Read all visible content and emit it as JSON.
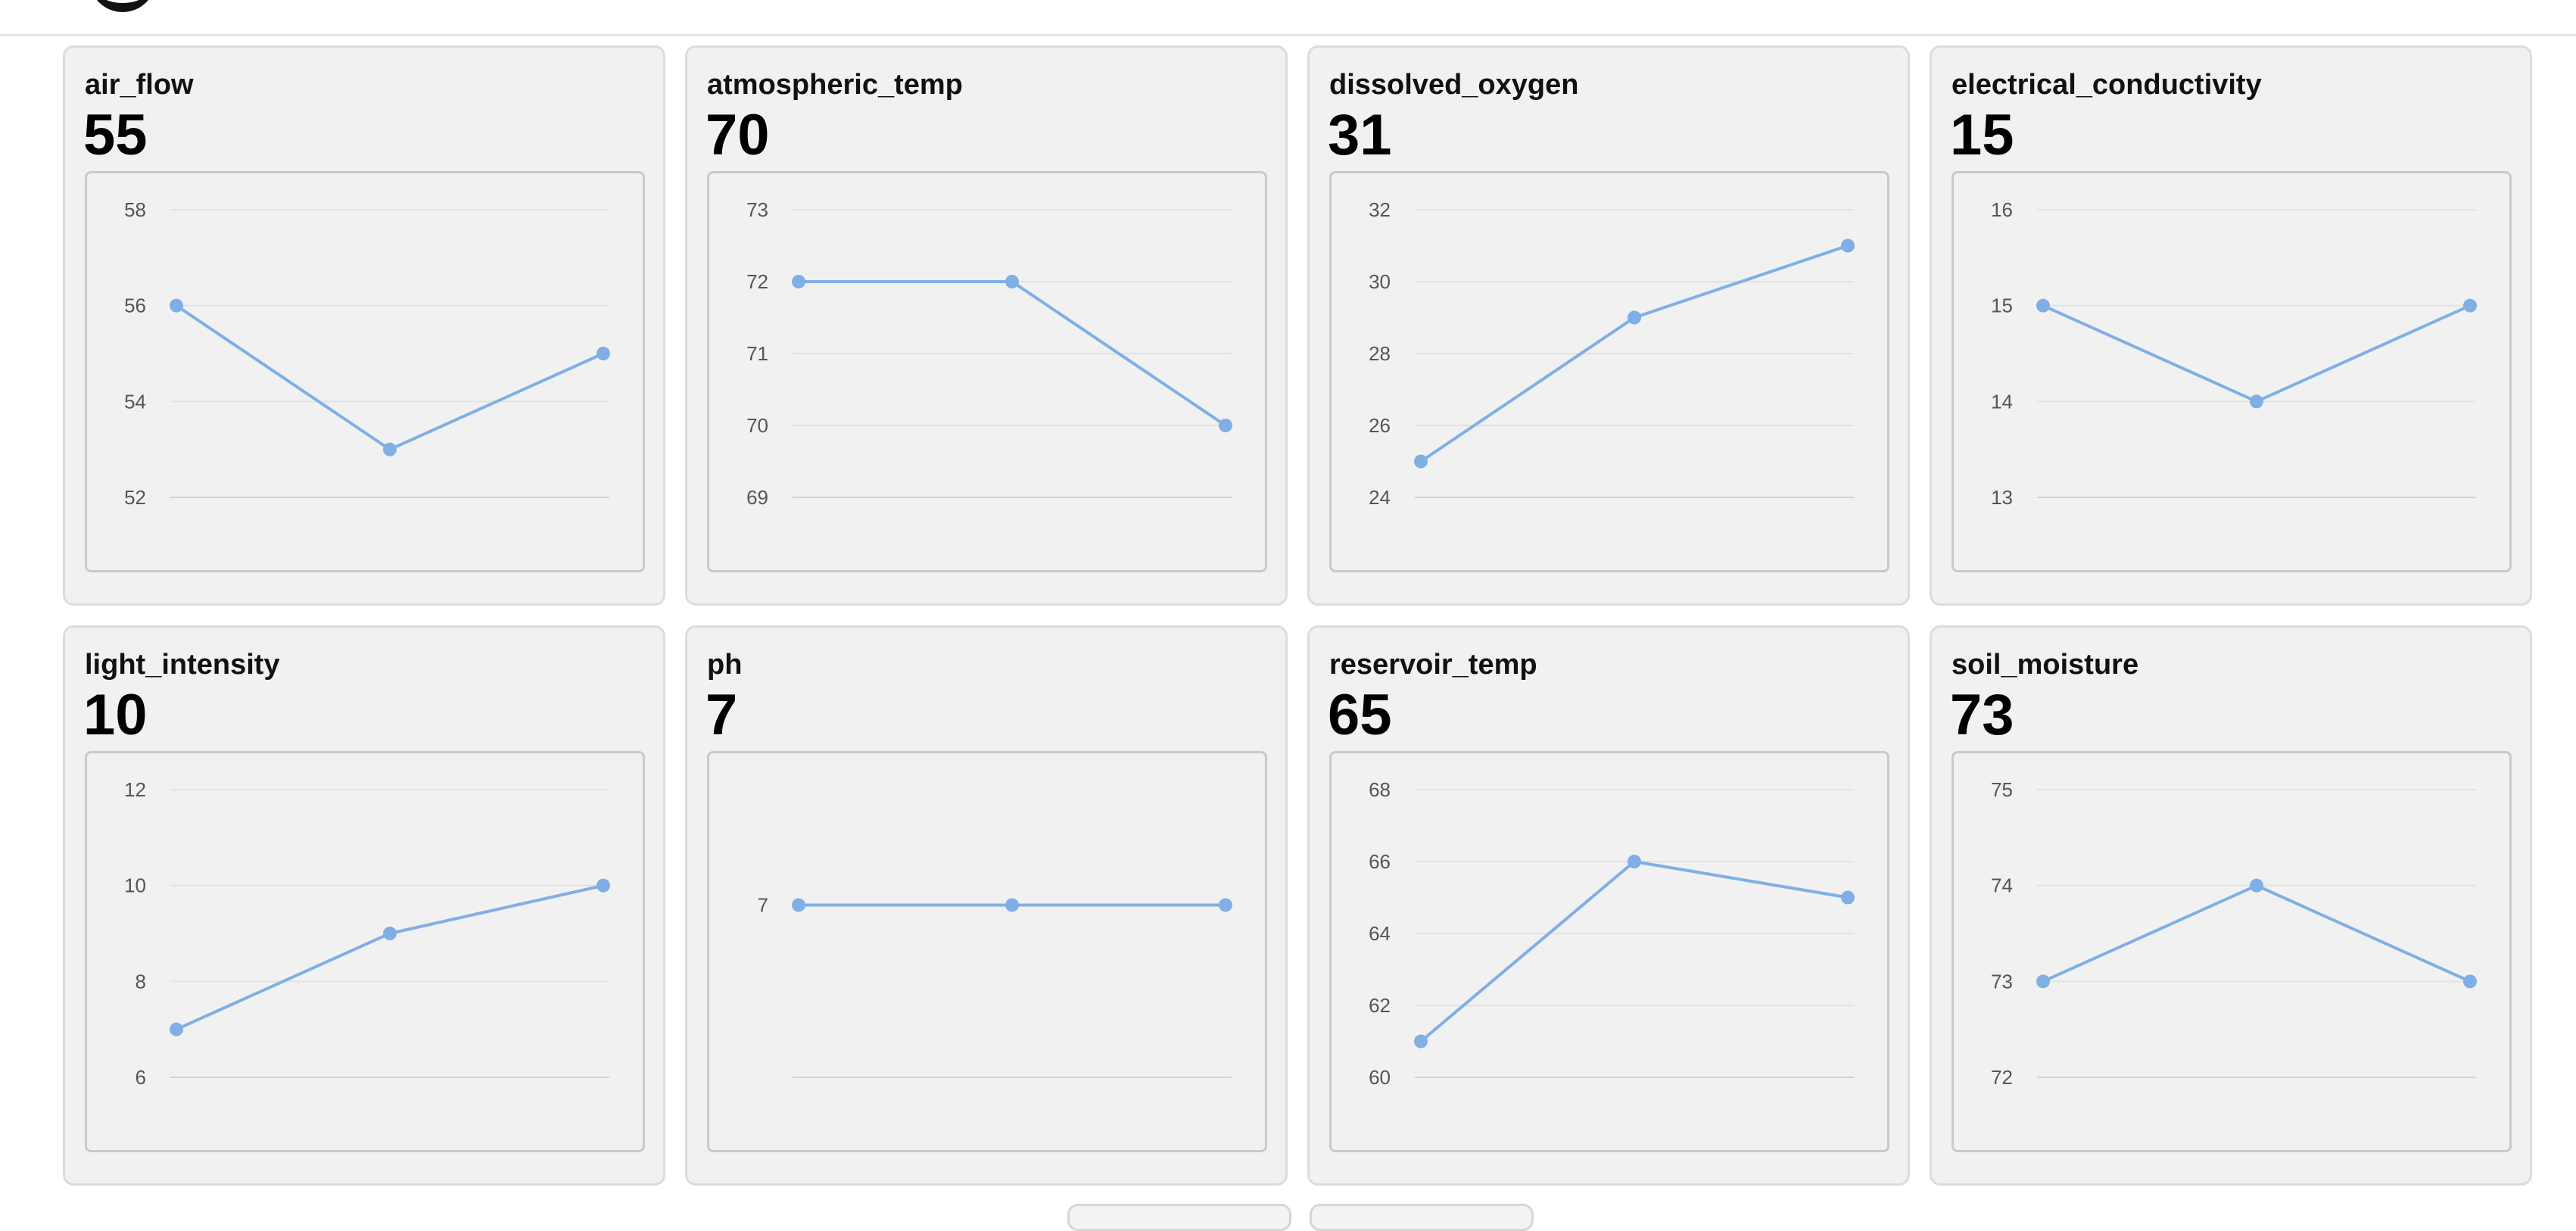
{
  "colors": {
    "line": "#80afe5",
    "grid": "#e2e2e2",
    "baseline": "#c9d5ea",
    "tick_text": "#555555",
    "card_bg": "#f1f1f1"
  },
  "cards": [
    {
      "title": "air_flow",
      "value": "55",
      "chart_data": {
        "type": "line",
        "points": [
          56,
          53,
          55
        ],
        "y_ticks": [
          58,
          56,
          54,
          52
        ],
        "ylim": [
          52,
          58
        ]
      }
    },
    {
      "title": "atmospheric_temp",
      "value": "70",
      "chart_data": {
        "type": "line",
        "points": [
          72,
          72,
          70
        ],
        "y_ticks": [
          73,
          72,
          71,
          70,
          69
        ],
        "ylim": [
          69,
          73
        ]
      }
    },
    {
      "title": "dissolved_oxygen",
      "value": "31",
      "chart_data": {
        "type": "line",
        "points": [
          25,
          29,
          31
        ],
        "y_ticks": [
          32,
          30,
          28,
          26,
          24
        ],
        "ylim": [
          24,
          32
        ]
      }
    },
    {
      "title": "electrical_conductivity",
      "value": "15",
      "chart_data": {
        "type": "line",
        "points": [
          15,
          14,
          15
        ],
        "y_ticks": [
          16,
          15,
          14,
          13
        ],
        "ylim": [
          13,
          16
        ]
      }
    },
    {
      "title": "light_intensity",
      "value": "10",
      "chart_data": {
        "type": "line",
        "points": [
          7,
          9,
          10
        ],
        "y_ticks": [
          12,
          10,
          8,
          6
        ],
        "ylim": [
          6,
          12
        ]
      }
    },
    {
      "title": "ph",
      "value": "7",
      "chart_data": {
        "type": "line",
        "points": [
          7,
          7,
          7
        ],
        "y_ticks": [
          7
        ],
        "ylim": [
          6,
          7.67
        ]
      }
    },
    {
      "title": "reservoir_temp",
      "value": "65",
      "chart_data": {
        "type": "line",
        "points": [
          61,
          66,
          65
        ],
        "y_ticks": [
          68,
          66,
          64,
          62,
          60
        ],
        "ylim": [
          60,
          68
        ]
      }
    },
    {
      "title": "soil_moisture",
      "value": "73",
      "chart_data": {
        "type": "line",
        "points": [
          73,
          74,
          73
        ],
        "y_ticks": [
          75,
          74,
          73,
          72
        ],
        "ylim": [
          72,
          75
        ]
      }
    }
  ]
}
